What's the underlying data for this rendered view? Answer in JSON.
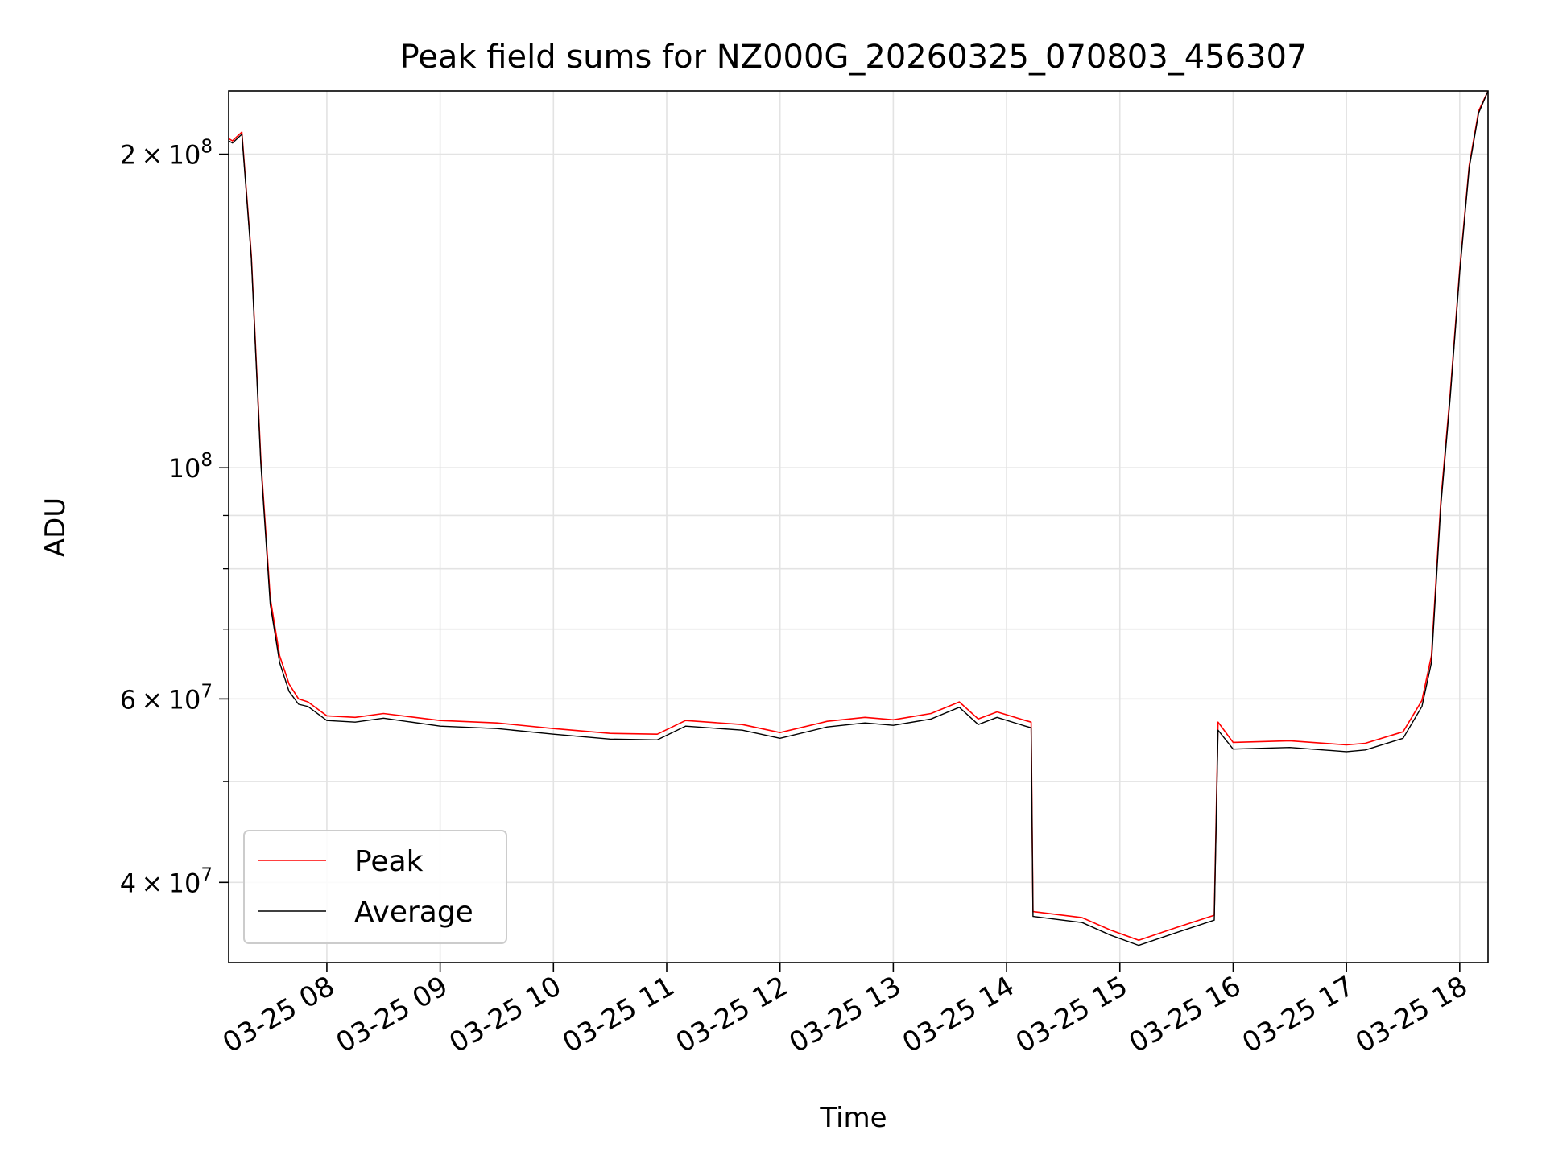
{
  "chart_data": {
    "type": "line",
    "title": "Peak field sums for NZ000G_20260325_070803_456307",
    "xlabel": "Time",
    "ylabel": "ADU",
    "y_scale": "log",
    "ylim": [
      33500000,
      230000000
    ],
    "xlim": [
      "2026-03-25 07:08",
      "2026-03-25 18:15"
    ],
    "grid": true,
    "legend_position": "lower left",
    "x_ticks": [
      "03-25 08",
      "03-25 09",
      "03-25 10",
      "03-25 11",
      "03-25 12",
      "03-25 13",
      "03-25 14",
      "03-25 15",
      "03-25 16",
      "03-25 17",
      "03-25 18"
    ],
    "y_ticks": [
      {
        "value": 40000000,
        "mantissa": "4",
        "base": "10",
        "exp": "7"
      },
      {
        "value": 60000000,
        "mantissa": "6",
        "base": "10",
        "exp": "7"
      },
      {
        "value": 100000000,
        "mantissa": "",
        "base": "10",
        "exp": "8"
      },
      {
        "value": 200000000,
        "mantissa": "2",
        "base": "10",
        "exp": "8"
      }
    ],
    "y_minor_ticks": [
      50000000,
      70000000,
      80000000,
      90000000
    ],
    "x_times": [
      "2026-03-25 07:08",
      "2026-03-25 07:10",
      "2026-03-25 07:15",
      "2026-03-25 07:20",
      "2026-03-25 07:25",
      "2026-03-25 07:30",
      "2026-03-25 07:35",
      "2026-03-25 07:40",
      "2026-03-25 07:45",
      "2026-03-25 07:50",
      "2026-03-25 08:00",
      "2026-03-25 08:15",
      "2026-03-25 08:30",
      "2026-03-25 09:00",
      "2026-03-25 09:30",
      "2026-03-25 10:00",
      "2026-03-25 10:30",
      "2026-03-25 10:55",
      "2026-03-25 11:10",
      "2026-03-25 11:40",
      "2026-03-25 12:00",
      "2026-03-25 12:25",
      "2026-03-25 12:45",
      "2026-03-25 13:00",
      "2026-03-25 13:20",
      "2026-03-25 13:35",
      "2026-03-25 13:45",
      "2026-03-25 13:55",
      "2026-03-25 14:10",
      "2026-03-25 14:13",
      "2026-03-25 14:14",
      "2026-03-25 14:40",
      "2026-03-25 14:55",
      "2026-03-25 15:10",
      "2026-03-25 15:30",
      "2026-03-25 15:50",
      "2026-03-25 15:52",
      "2026-03-25 16:00",
      "2026-03-25 16:30",
      "2026-03-25 17:00",
      "2026-03-25 17:10",
      "2026-03-25 17:30",
      "2026-03-25 17:40",
      "2026-03-25 17:45",
      "2026-03-25 17:50",
      "2026-03-25 17:55",
      "2026-03-25 18:00",
      "2026-03-25 18:05",
      "2026-03-25 18:10",
      "2026-03-25 18:15"
    ],
    "series": [
      {
        "name": "Peak",
        "color": "#ff0000",
        "values": [
          207000000,
          206000000,
          210000000,
          160000000,
          102000000,
          75000000,
          66000000,
          62000000,
          60000000,
          59600000,
          57800000,
          57600000,
          58100000,
          57200000,
          56900000,
          56200000,
          55600000,
          55500000,
          57200000,
          56700000,
          55700000,
          57100000,
          57600000,
          57300000,
          58100000,
          59600000,
          57400000,
          58300000,
          57200000,
          57000000,
          37500000,
          37000000,
          36000000,
          35200000,
          36200000,
          37200000,
          57000000,
          54500000,
          54700000,
          54200000,
          54400000,
          55800000,
          59800000,
          66000000,
          93000000,
          118000000,
          155000000,
          195000000,
          220000000,
          230000000
        ]
      },
      {
        "name": "Average",
        "color": "#000000",
        "values": [
          206000000,
          205000000,
          209000000,
          159000000,
          101000000,
          74000000,
          65000000,
          61000000,
          59300000,
          59000000,
          57200000,
          57000000,
          57500000,
          56500000,
          56200000,
          55500000,
          54900000,
          54800000,
          56500000,
          56000000,
          55000000,
          56400000,
          56900000,
          56600000,
          57400000,
          58900000,
          56700000,
          57600000,
          56500000,
          56300000,
          37100000,
          36600000,
          35600000,
          34800000,
          35800000,
          36800000,
          56000000,
          53700000,
          53900000,
          53400000,
          53600000,
          55000000,
          59000000,
          65000000,
          92000000,
          117000000,
          154000000,
          194000000,
          219000000,
          230000000
        ]
      }
    ]
  }
}
